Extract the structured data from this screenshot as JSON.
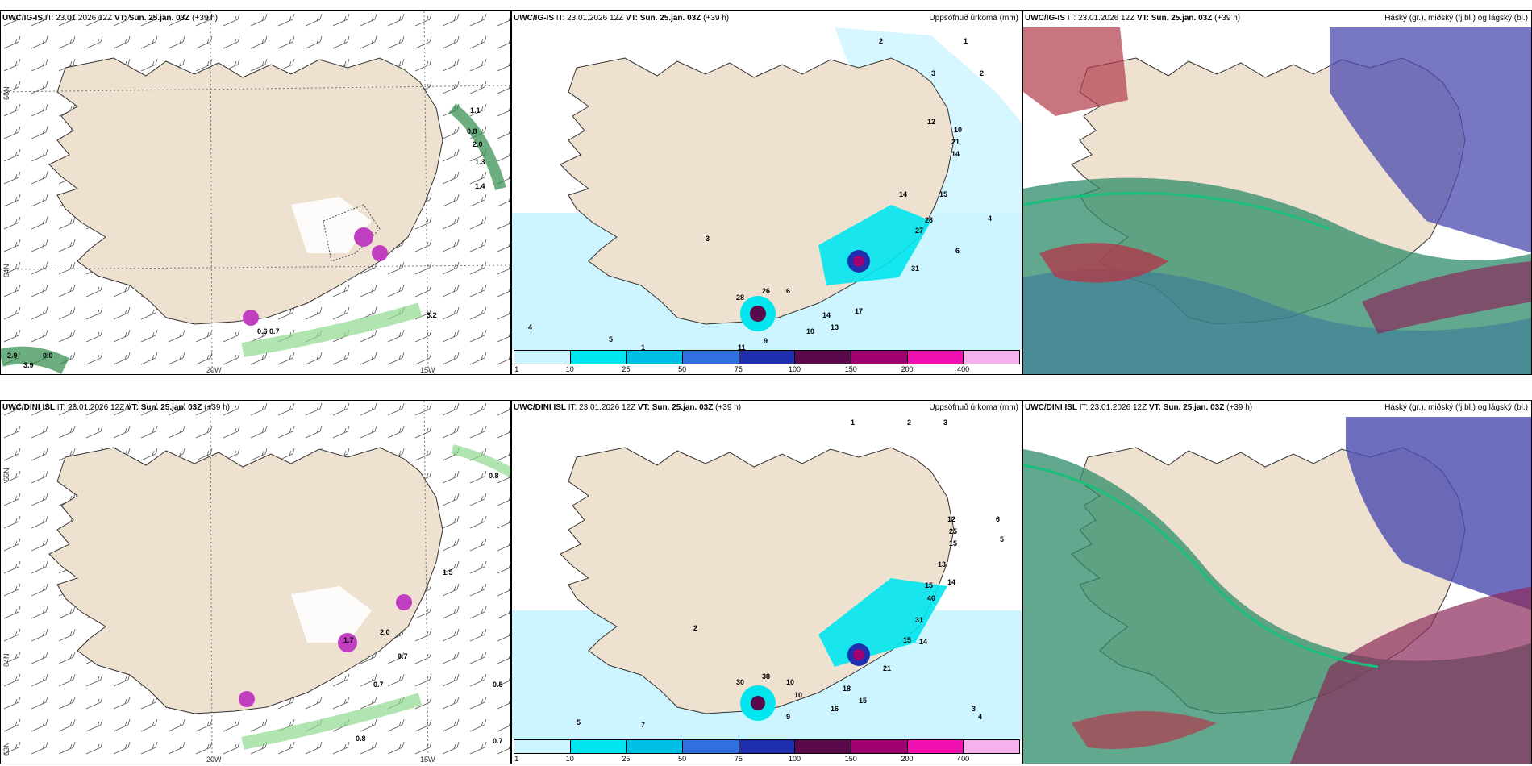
{
  "panels": [
    {
      "model": "UWC/IG-IS",
      "it": "IT: 23.01.2026 12Z",
      "vt_label": "VT:",
      "vt": "Sun. 25.jan. 03Z",
      "lead": "(+39 h)",
      "title_right": "",
      "lon_ticks": [
        "20W",
        "15W"
      ],
      "lat_ticks": [
        "66N",
        "64N"
      ],
      "values": [
        "1.1",
        "0.8",
        "2.0",
        "1.3",
        "1.4",
        "0.6",
        "0.7",
        "3.2",
        "2.9",
        "3.9",
        "0.0"
      ]
    },
    {
      "model": "UWC/IG-IS",
      "it": "IT: 23.01.2026 12Z",
      "vt_label": "VT:",
      "vt": "Sun. 25.jan. 03Z",
      "lead": "(+39 h)",
      "title_right": "Uppsöfnuð úrkoma (mm)",
      "values": [
        "2",
        "1",
        "3",
        "2",
        "12",
        "10",
        "21",
        "14",
        "15",
        "14",
        "27",
        "26",
        "31",
        "6",
        "4",
        "28",
        "26",
        "6",
        "17",
        "14",
        "13",
        "10",
        "11",
        "9",
        "5",
        "4",
        "1",
        "3"
      ]
    },
    {
      "model": "UWC/IG-IS",
      "it": "IT: 23.01.2026 12Z",
      "vt_label": "VT:",
      "vt": "Sun. 25.jan. 03Z",
      "lead": "(+39 h)",
      "title_right": "Háský (gr.), miðský (fj.bl.) og lágský (bl.)"
    },
    {
      "model": "UWC/DINI ISL",
      "it": "IT: 23.01.2026 12Z",
      "vt_label": "VT:",
      "vt": "Sun. 25.jan. 03Z",
      "lead": "(+39 h)",
      "title_right": "",
      "lon_ticks": [
        "20W",
        "15W"
      ],
      "lat_ticks": [
        "66N",
        "64N",
        "63N"
      ],
      "values": [
        "0.8",
        "1.5",
        "2.0",
        "0.7",
        "0.7",
        "0.5",
        "0.8",
        "0.7",
        "1.7"
      ]
    },
    {
      "model": "UWC/DINI ISL",
      "it": "IT: 23.01.2026 12Z",
      "vt_label": "VT:",
      "vt": "Sun. 25.jan. 03Z",
      "lead": "(+39 h)",
      "title_right": "Uppsöfnuð úrkoma (mm)",
      "values": [
        "1",
        "2",
        "3",
        "12",
        "25",
        "15",
        "13",
        "15",
        "14",
        "40",
        "31",
        "15",
        "14",
        "21",
        "18",
        "16",
        "15",
        "38",
        "30",
        "10",
        "10",
        "9",
        "5",
        "7",
        "6",
        "5",
        "4",
        "3",
        "2"
      ]
    },
    {
      "model": "UWC/DINI ISL",
      "it": "IT: 23.01.2026 12Z",
      "vt_label": "VT:",
      "vt": "Sun. 25.jan. 03Z",
      "lead": "(+39 h)",
      "title_right": "Háský (gr.), miðský (fj.bl.) og lágský (bl.)"
    }
  ],
  "colorbar": {
    "labels": [
      "1",
      "10",
      "25",
      "50",
      "75",
      "100",
      "150",
      "200",
      "400"
    ],
    "colors": [
      "#ccf5ff",
      "#00e5ee",
      "#00bfe6",
      "#2f6fe0",
      "#1f2fb0",
      "#5a0a4a",
      "#a0006e",
      "#f010b0",
      "#f5b0ee"
    ]
  },
  "colors": {
    "land": "#efe1d0",
    "sea_green": "#2e8b6a",
    "cloud_blue": "#4a4ab0",
    "cloud_red": "#b03a4a"
  }
}
